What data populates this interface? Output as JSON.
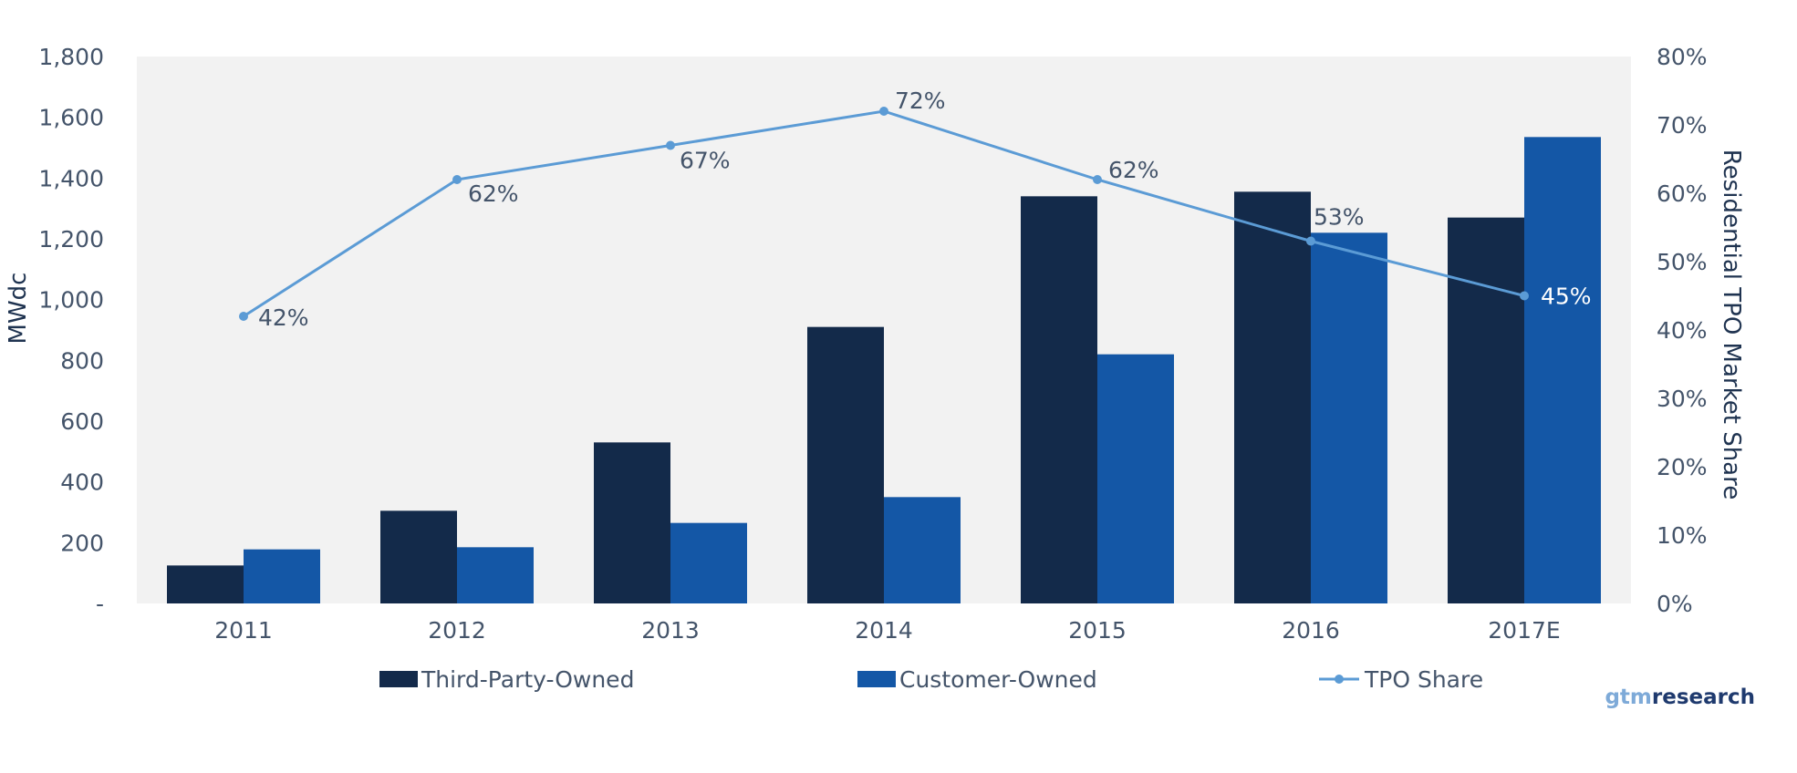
{
  "chart_data": {
    "type": "bar",
    "categories": [
      "2011",
      "2012",
      "2013",
      "2014",
      "2015",
      "2016",
      "2017E"
    ],
    "series": [
      {
        "name": "Third-Party-Owned",
        "type": "bar",
        "axis": "left",
        "color": "#132a4a",
        "values": [
          125,
          305,
          530,
          910,
          1340,
          1355,
          1270
        ]
      },
      {
        "name": "Customer-Owned",
        "type": "bar",
        "axis": "left",
        "color": "#1457a6",
        "values": [
          178,
          185,
          265,
          350,
          820,
          1220,
          1535
        ]
      },
      {
        "name": "TPO Share",
        "type": "line",
        "axis": "right",
        "color": "#5b9bd5",
        "values": [
          42,
          62,
          67,
          72,
          62,
          53,
          45
        ],
        "labels": [
          "42%",
          "62%",
          "67%",
          "72%",
          "62%",
          "53%",
          "45%"
        ]
      }
    ],
    "ylabel": "MWdc",
    "y2label": "Residential TPO Market Share",
    "ylim": [
      0,
      1800
    ],
    "y2lim": [
      0,
      80
    ],
    "yticks": [
      "-",
      "200",
      "400",
      "600",
      "800",
      "1,000",
      "1,200",
      "1,400",
      "1,600",
      "1,800"
    ],
    "y2ticks": [
      "0%",
      "10%",
      "20%",
      "30%",
      "40%",
      "50%",
      "60%",
      "70%",
      "80%"
    ],
    "legend_position": "bottom",
    "plot_background": "#f2f2f2",
    "grid": false
  },
  "branding": {
    "left": "gtm",
    "right": "research"
  }
}
